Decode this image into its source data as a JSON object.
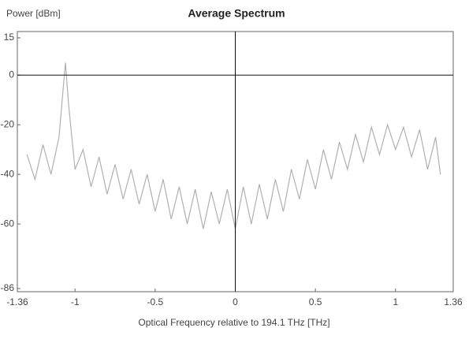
{
  "chart_data": {
    "type": "line",
    "title": "Average Spectrum",
    "ylabel": "Power [dBm]",
    "xlabel": "Optical Frequency relative to 194.1 THz [THz]",
    "x": [
      -1.3,
      -1.25,
      -1.2,
      -1.15,
      -1.1,
      -1.08,
      -1.06,
      -1.04,
      -1.0,
      -0.95,
      -0.9,
      -0.85,
      -0.8,
      -0.75,
      -0.7,
      -0.65,
      -0.6,
      -0.55,
      -0.5,
      -0.45,
      -0.4,
      -0.35,
      -0.3,
      -0.25,
      -0.2,
      -0.15,
      -0.1,
      -0.05,
      0.0,
      0.05,
      0.1,
      0.15,
      0.2,
      0.25,
      0.3,
      0.35,
      0.4,
      0.45,
      0.5,
      0.55,
      0.6,
      0.65,
      0.7,
      0.75,
      0.8,
      0.85,
      0.9,
      0.95,
      1.0,
      1.05,
      1.1,
      1.15,
      1.2,
      1.25,
      1.28
    ],
    "values": [
      -32,
      -42,
      -28,
      -40,
      -25,
      -10,
      5,
      -12,
      -38,
      -30,
      -45,
      -33,
      -48,
      -36,
      -50,
      -38,
      -52,
      -40,
      -55,
      -42,
      -58,
      -45,
      -60,
      -46,
      -62,
      -47,
      -60,
      -46,
      -62,
      -45,
      -60,
      -44,
      -58,
      -42,
      -55,
      -38,
      -50,
      -34,
      -46,
      -30,
      -42,
      -27,
      -38,
      -24,
      -35,
      -21,
      -32,
      -20,
      -30,
      -21,
      -33,
      -22,
      -38,
      -25,
      -40
    ],
    "color": "#b0b0b0",
    "xlim": [
      -1.36,
      1.36
    ],
    "xticks": [
      -1.36,
      -1,
      -0.5,
      0,
      0.5,
      1,
      1.36
    ],
    "ylim": [
      -86,
      15
    ],
    "yticks": [
      15,
      0,
      -20,
      -40,
      -60,
      -86
    ]
  }
}
